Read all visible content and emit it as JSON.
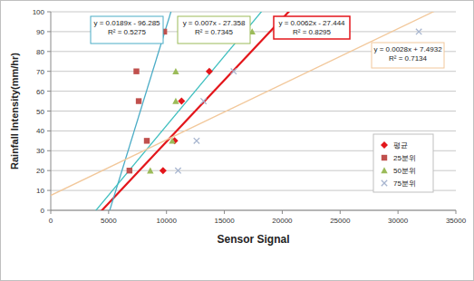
{
  "chart_data": {
    "type": "scatter",
    "x_label": "Sensor Signal",
    "y_label": "Rainfall Intensity(mm/hr)",
    "xlim": [
      0,
      35000
    ],
    "xticks": [
      0,
      5000,
      10000,
      15000,
      20000,
      25000,
      30000,
      35000
    ],
    "ylim": [
      0,
      100
    ],
    "yticks": [
      0,
      10,
      20,
      30,
      40,
      50,
      60,
      70,
      80,
      90,
      100
    ],
    "grid": true,
    "legend": "right",
    "series": [
      {
        "name": "평균",
        "color": "#e3161b",
        "marker": "diamond",
        "x": [
          9700,
          10700,
          11300,
          13700
        ],
        "values": [
          20,
          35,
          55,
          70
        ],
        "trendline": {
          "slope": 0.0062,
          "intercept": -27.444,
          "color": "#e3161b",
          "label": "y = 0.0062x - 27.444",
          "r2_label": "R² = 0.8295"
        }
      },
      {
        "name": "25분위",
        "color": "#c0504d",
        "marker": "square",
        "x": [
          6800,
          8300,
          7600,
          7400,
          9800
        ],
        "values": [
          20,
          35,
          55,
          70,
          90
        ],
        "trendline": {
          "slope": 0.0189,
          "intercept": -96.285,
          "color": "#4bacc6",
          "label": "y = 0.0189x - 96.285",
          "r2_label": "R² = 0.5275"
        }
      },
      {
        "name": "50분위",
        "color": "#9bbb59",
        "marker": "triangle",
        "x": [
          8600,
          10500,
          10800,
          10800,
          17400
        ],
        "values": [
          20,
          35,
          55,
          70,
          90
        ],
        "trendline": {
          "slope": 0.007,
          "intercept": -27.358,
          "color": "#3fbfbf",
          "label": "y = 0.007x - 27.358",
          "r2_label": "R² = 0.7345"
        }
      },
      {
        "name": "75분위",
        "color": "#a7b5cf",
        "marker": "x",
        "x": [
          11000,
          12600,
          13200,
          15800,
          31800
        ],
        "values": [
          20,
          35,
          55,
          70,
          90
        ],
        "trendline": {
          "slope": 0.0028,
          "intercept": 7.4932,
          "color": "#f2c89b",
          "label": "y = 0.0028x + 7.4932",
          "r2_label": "R² = 0.7134"
        }
      }
    ]
  }
}
